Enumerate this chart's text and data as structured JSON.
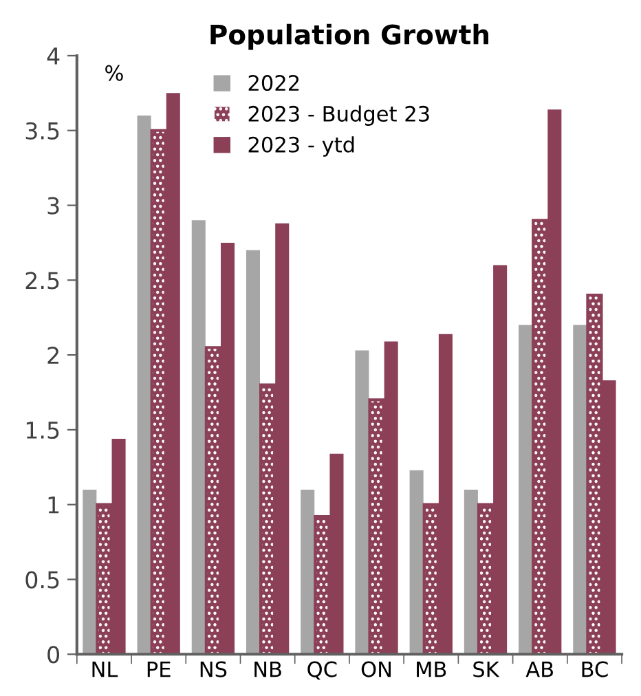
{
  "chart_data": {
    "type": "bar",
    "title": "Population Growth",
    "categories": [
      "NL",
      "PE",
      "NS",
      "NB",
      "QC",
      "ON",
      "MB",
      "SK",
      "AB",
      "BC"
    ],
    "series": [
      {
        "name": "2022",
        "color": "#a6a6a6",
        "values": [
          1.1,
          3.6,
          2.9,
          2.7,
          1.1,
          2.03,
          1.23,
          1.1,
          2.2,
          2.2
        ]
      },
      {
        "name": "2023 - Budget 23",
        "color": "#8c4058",
        "values": [
          1.0,
          3.5,
          2.05,
          1.8,
          0.92,
          1.7,
          1.0,
          1.0,
          2.9,
          2.4
        ]
      },
      {
        "name": "2023 - ytd",
        "color": "#8c4058",
        "values": [
          1.44,
          3.75,
          2.75,
          2.88,
          1.34,
          2.09,
          2.14,
          2.6,
          3.64,
          1.83
        ]
      }
    ],
    "annotations": [
      "%"
    ],
    "ylim": [
      0,
      4
    ],
    "yticks": [
      0,
      0.5,
      1,
      1.5,
      2,
      2.5,
      3,
      3.5,
      4
    ],
    "legend": "top",
    "grid": false
  }
}
